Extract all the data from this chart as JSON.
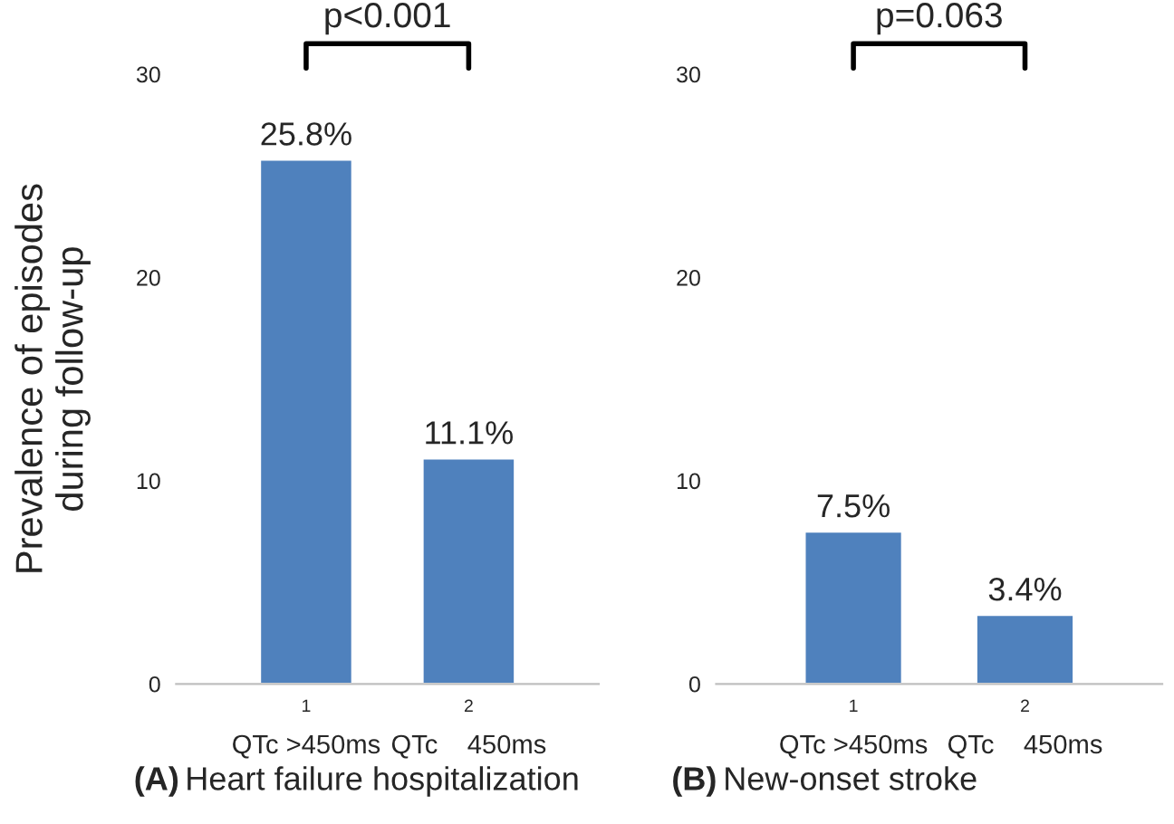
{
  "chart_data": [
    {
      "type": "bar",
      "categories": [
        "1",
        "2"
      ],
      "values": [
        25.8,
        11.1
      ],
      "value_labels": [
        "25.8%",
        "11.1%"
      ],
      "color": "#4f81bd",
      "ylim": [
        0,
        30
      ],
      "yticks": [
        0,
        10,
        20,
        30
      ],
      "ylabel": "Prevalence of episodes\nduring follow-up",
      "xlabel": "(A) Heart failure hospitalization",
      "grid": false,
      "annotations": [
        "p<0.001",
        "QTc >450ms",
        "QTc    450ms"
      ]
    },
    {
      "type": "bar",
      "categories": [
        "1",
        "2"
      ],
      "values": [
        7.5,
        3.4
      ],
      "value_labels": [
        "7.5%",
        "3.4%"
      ],
      "color": "#4f81bd",
      "ylim": [
        0,
        30
      ],
      "yticks": [
        0,
        10,
        20,
        30
      ],
      "xlabel": "(B) New-onset stroke",
      "grid": false,
      "annotations": [
        "p=0.063",
        "QTc >450ms",
        "QTc    450ms"
      ]
    }
  ]
}
